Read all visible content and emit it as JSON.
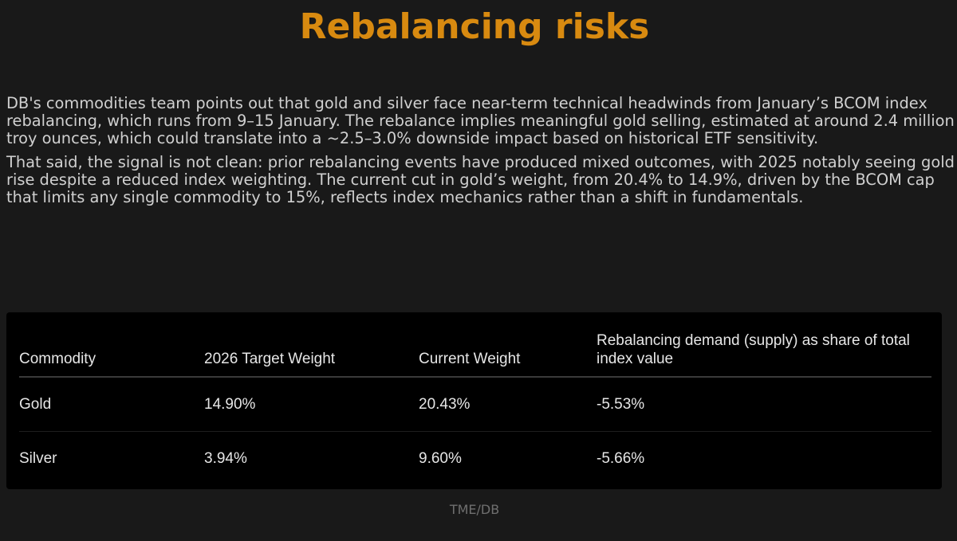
{
  "title": "Rebalancing risks",
  "paragraphs": [
    "DB's commodities team points out that gold and silver face near-term technical headwinds from January’s BCOM index rebalancing, which runs from 9–15 January. The rebalance implies meaningful gold selling, estimated at around 2.4 million troy ounces, which could translate into a ~2.5–3.0% downside impact based on historical ETF sensitivity.",
    "That said, the signal is not clean: prior rebalancing events have produced mixed outcomes, with 2025 notably seeing gold rise despite a reduced index weighting. The current cut in gold’s weight, from 20.4% to 14.9%, driven by the BCOM cap that limits any single commodity to 15%, reflects index mechanics rather than a shift in fundamentals."
  ],
  "table": {
    "headers": [
      "Commodity",
      "2026 Target Weight",
      "Current Weight",
      "Rebalancing demand (supply) as share of total index value"
    ],
    "rows": [
      [
        "Gold",
        "14.90%",
        "20.43%",
        "-5.53%"
      ],
      [
        "Silver",
        "3.94%",
        "9.60%",
        "-5.66%"
      ]
    ]
  },
  "source": "TME/DB",
  "colors": {
    "title": "#d88a10",
    "background": "#191919",
    "table_background": "#000000"
  }
}
